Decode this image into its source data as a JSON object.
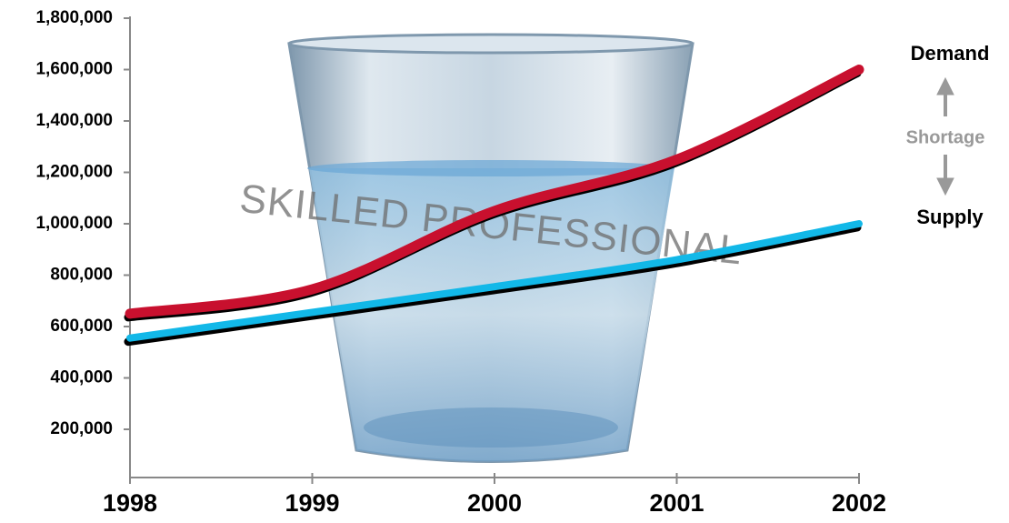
{
  "chart_data": {
    "type": "line",
    "x": [
      1998,
      1999,
      2000,
      2001,
      2002
    ],
    "xlim": [
      1998,
      2002
    ],
    "xticks": [
      1998,
      1999,
      2000,
      2001,
      2002
    ],
    "ylim": [
      0,
      1800000
    ],
    "yticks": [
      {
        "value": 200000,
        "label": "200,000"
      },
      {
        "value": 400000,
        "label": "400,000"
      },
      {
        "value": 600000,
        "label": "600,000"
      },
      {
        "value": 800000,
        "label": "800,000"
      },
      {
        "value": 1000000,
        "label": "1,000,000"
      },
      {
        "value": 1200000,
        "label": "1,200,000"
      },
      {
        "value": 1400000,
        "label": "1,400,000"
      },
      {
        "value": 1600000,
        "label": "1,600,000"
      },
      {
        "value": 1800000,
        "label": "1,800,000"
      }
    ],
    "series": [
      {
        "name": "Demand",
        "color": "#c8102e",
        "values": [
          650000,
          745000,
          1050000,
          1250000,
          1600000
        ]
      },
      {
        "name": "Supply",
        "color": "#12b8e8",
        "values": [
          555000,
          655000,
          755000,
          860000,
          1000000
        ]
      }
    ],
    "annotations": [
      "Shortage",
      "SKILLED PROFESSIONAL"
    ]
  }
}
